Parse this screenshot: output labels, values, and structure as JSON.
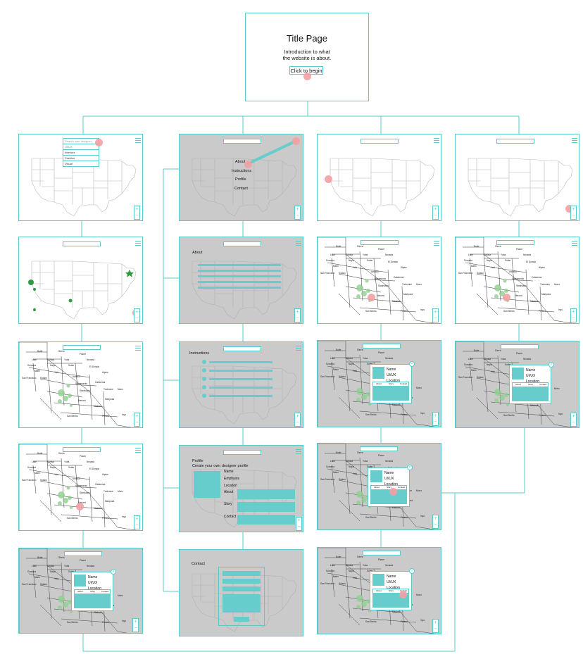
{
  "title_page": {
    "title": "Title Page",
    "intro_line1": "Introduction to what",
    "intro_line2": "the website is about.",
    "button": "Click to begin"
  },
  "menu": {
    "items": [
      "About",
      "Instructions",
      "Profile",
      "Contact"
    ]
  },
  "emphasis_dropdown": {
    "placeholder": "Search over designer",
    "options": [
      "UI/UX",
      "Interiors",
      "Fashion",
      "Visual"
    ]
  },
  "about_page": {
    "heading": "About"
  },
  "instructions_page": {
    "heading": "Instructions"
  },
  "profile_page": {
    "heading": "Profile",
    "subheading": "Create your own designer profile",
    "fields": [
      "Name",
      "Emphasis",
      "Location",
      "About",
      "Story",
      "Contact"
    ]
  },
  "contact_page": {
    "heading": "Contact"
  },
  "designer_popup": {
    "name": "Name",
    "emphasis": "UI/UX",
    "location": "Location",
    "tabs": [
      "About",
      "Story",
      "Contact"
    ],
    "close": "×"
  },
  "zoom": {
    "plus": "+",
    "minus": "−"
  },
  "county_labels": [
    "Butte",
    "Sierra",
    "Placer",
    "Lake",
    "Colusa",
    "Yuba",
    "Nevada",
    "Sonoma",
    "Napa",
    "Sutter",
    "El Dorado",
    "Marin",
    "Yolo",
    "Alpine",
    "San Francisco",
    "Solano",
    "Amador",
    "Sacramento",
    "Calaveras",
    "Tuolumne",
    "Stanislaus",
    "Mariposa",
    "Merced",
    "Madera",
    "Fresno",
    "San Benito",
    "Inyo",
    "Mono"
  ],
  "colors": {
    "accent": "#5cc9c9",
    "fill": "#66cccc",
    "grey_bg": "#cacaca",
    "click": "#f3a0a4",
    "pin": "#2e9b3e"
  }
}
